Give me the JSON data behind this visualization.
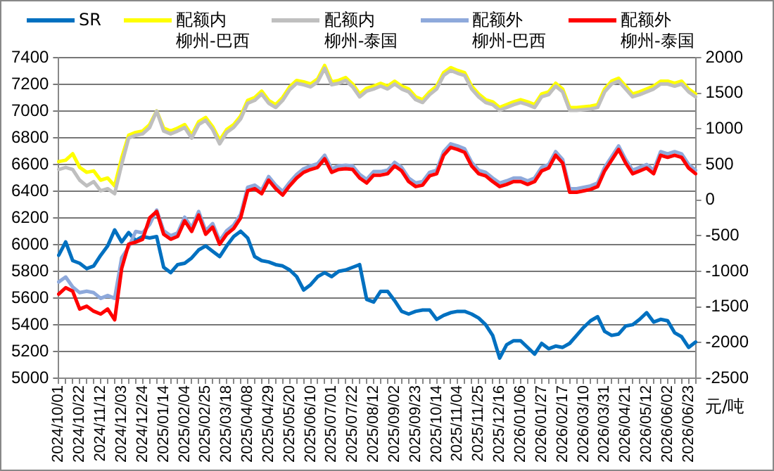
{
  "chart_data": {
    "type": "line",
    "categories": [
      "2024/10/01",
      null,
      null,
      "2024/10/22",
      null,
      null,
      "2024/11/12",
      null,
      null,
      "2024/12/03",
      null,
      null,
      "2024/12/24",
      null,
      null,
      "2025/01/14",
      null,
      null,
      "2025/02/04",
      null,
      null,
      "2025/02/25",
      null,
      null,
      "2025/03/18",
      null,
      null,
      "2025/04/08",
      null,
      null,
      "2025/04/29",
      null,
      null,
      "2025/05/20",
      null,
      null,
      "2025/06/10",
      null,
      null,
      "2025/07/01",
      null,
      null,
      "2025/07/22",
      null,
      null,
      "2025/08/12",
      null,
      null,
      "2025/09/02",
      null,
      null,
      "2025/09/23",
      null,
      null,
      "2025/10/14",
      null,
      null,
      "2025/11/04",
      null,
      null,
      "2025/11/25",
      null,
      null,
      "2025/12/16",
      null,
      null,
      "2026/01/06",
      null,
      null,
      "2026/01/27",
      null,
      null,
      "2026/02/17",
      null,
      null,
      "2026/03/10",
      null,
      null,
      "2026/03/31",
      null,
      null,
      "2026/04/21",
      null,
      null,
      "2026/05/12",
      null,
      null,
      "2026/06/02",
      null,
      null,
      "2026/06/23",
      null
    ],
    "series": [
      {
        "name": "SR",
        "color": "#0070c0",
        "values": [
          5920,
          6020,
          5880,
          5860,
          5820,
          5840,
          5920,
          5990,
          6110,
          6020,
          6090,
          6030,
          6060,
          6050,
          6060,
          5830,
          5790,
          5850,
          5860,
          5900,
          5960,
          5990,
          5950,
          5910,
          5990,
          6060,
          6100,
          6050,
          5910,
          5880,
          5870,
          5850,
          5840,
          5810,
          5760,
          5660,
          5700,
          5760,
          5790,
          5760,
          5800,
          5810,
          5830,
          5850,
          5590,
          5570,
          5650,
          5650,
          5580,
          5500,
          5480,
          5500,
          5510,
          5510,
          5440,
          5470,
          5490,
          5500,
          5500,
          5480,
          5450,
          5400,
          5320,
          5150,
          5250,
          5280,
          5280,
          5230,
          5180,
          5260,
          5220,
          5240,
          5230,
          5260,
          5320,
          5380,
          5430,
          5460,
          5350,
          5320,
          5330,
          5390,
          5400,
          5440,
          5490,
          5420,
          5440,
          5430,
          5340,
          5310,
          5230,
          5270
        ]
      },
      {
        "name": "配额内柳州-巴西",
        "color": "#ffff00",
        "axis": "y2",
        "values": [
          540,
          560,
          650,
          460,
          390,
          410,
          280,
          310,
          200,
          590,
          910,
          950,
          970,
          1060,
          1250,
          1010,
          970,
          1010,
          1060,
          910,
          1100,
          1160,
          1030,
          840,
          990,
          1060,
          1180,
          1400,
          1440,
          1530,
          1400,
          1340,
          1440,
          1590,
          1680,
          1660,
          1630,
          1700,
          1890,
          1660,
          1680,
          1720,
          1630,
          1490,
          1570,
          1600,
          1640,
          1600,
          1670,
          1600,
          1560,
          1450,
          1410,
          1520,
          1600,
          1790,
          1860,
          1820,
          1790,
          1600,
          1490,
          1410,
          1380,
          1300,
          1340,
          1380,
          1410,
          1380,
          1340,
          1490,
          1520,
          1640,
          1560,
          1300,
          1300,
          1310,
          1320,
          1340,
          1560,
          1670,
          1710,
          1600,
          1490,
          1520,
          1560,
          1600,
          1670,
          1670,
          1640,
          1670,
          1560,
          1490
        ]
      },
      {
        "name": "配额内柳州-泰国",
        "color": "#bfbfbf",
        "axis": "y2",
        "values": [
          430,
          460,
          430,
          280,
          200,
          260,
          130,
          160,
          90,
          500,
          870,
          910,
          930,
          1020,
          1250,
          970,
          930,
          970,
          1020,
          870,
          1060,
          1120,
          990,
          790,
          950,
          1020,
          1140,
          1360,
          1400,
          1490,
          1360,
          1300,
          1400,
          1550,
          1640,
          1620,
          1590,
          1660,
          1850,
          1620,
          1640,
          1680,
          1590,
          1450,
          1530,
          1560,
          1600,
          1560,
          1630,
          1560,
          1520,
          1410,
          1370,
          1480,
          1560,
          1750,
          1820,
          1780,
          1750,
          1560,
          1450,
          1370,
          1340,
          1260,
          1300,
          1340,
          1370,
          1340,
          1300,
          1450,
          1480,
          1600,
          1520,
          1260,
          1260,
          1270,
          1280,
          1300,
          1520,
          1630,
          1670,
          1560,
          1450,
          1480,
          1520,
          1560,
          1630,
          1630,
          1600,
          1630,
          1520,
          1450
        ]
      },
      {
        "name": "配额外柳州-巴西",
        "color": "#8ea9db",
        "axis": "y2",
        "values": [
          -1150,
          -1080,
          -1220,
          -1300,
          -1280,
          -1300,
          -1380,
          -1340,
          -1380,
          -810,
          -660,
          -440,
          -460,
          -340,
          -140,
          -430,
          -500,
          -460,
          -240,
          -390,
          -160,
          -430,
          -330,
          -570,
          -430,
          -350,
          -200,
          180,
          210,
          140,
          330,
          210,
          120,
          250,
          360,
          440,
          480,
          510,
          630,
          440,
          480,
          490,
          480,
          360,
          290,
          400,
          400,
          420,
          530,
          460,
          310,
          240,
          260,
          390,
          420,
          680,
          790,
          760,
          720,
          530,
          420,
          390,
          310,
          240,
          270,
          310,
          310,
          270,
          310,
          460,
          500,
          680,
          570,
          160,
          160,
          180,
          200,
          240,
          460,
          610,
          760,
          570,
          420,
          460,
          500,
          420,
          680,
          650,
          680,
          650,
          500,
          420
        ]
      },
      {
        "name": "配额外柳州-泰国",
        "color": "#ff0000",
        "axis": "y2",
        "values": [
          -1320,
          -1230,
          -1280,
          -1530,
          -1490,
          -1560,
          -1600,
          -1530,
          -1680,
          -960,
          -620,
          -590,
          -550,
          -250,
          -160,
          -480,
          -550,
          -510,
          -290,
          -440,
          -210,
          -480,
          -380,
          -620,
          -480,
          -400,
          -250,
          130,
          160,
          90,
          280,
          160,
          70,
          200,
          310,
          390,
          430,
          460,
          580,
          390,
          430,
          440,
          430,
          310,
          240,
          350,
          350,
          370,
          480,
          410,
          260,
          190,
          210,
          340,
          370,
          630,
          740,
          710,
          670,
          480,
          370,
          340,
          260,
          190,
          220,
          260,
          260,
          220,
          260,
          410,
          450,
          630,
          520,
          110,
          110,
          130,
          150,
          190,
          410,
          560,
          710,
          520,
          370,
          410,
          450,
          370,
          630,
          600,
          630,
          600,
          450,
          370
        ]
      }
    ],
    "ylim": [
      5000,
      7400
    ],
    "yticks": [
      5000,
      5200,
      5400,
      5600,
      5800,
      6000,
      6200,
      6400,
      6600,
      6800,
      7000,
      7200,
      7400
    ],
    "y2lim": [
      -2500,
      2000
    ],
    "y2ticks": [
      -2500,
      -2000,
      -1500,
      -1000,
      -500,
      0,
      500,
      1000,
      1500,
      2000
    ],
    "grid": "y",
    "legend": "top",
    "marker": "none",
    "line_style": "solid",
    "annotations": [
      "元/吨"
    ]
  }
}
